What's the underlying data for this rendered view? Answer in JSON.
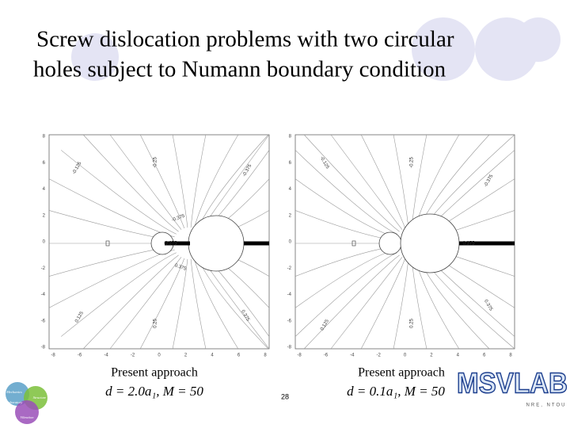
{
  "title": "Screw dislocation problems with two circular holes subject to Numann boundary condition",
  "plots": [
    {
      "caption": "Present approach",
      "formula": "d = 2.0a₁, M = 50",
      "yticks": [
        "8",
        "6",
        "4",
        "2",
        "0",
        "-2",
        "-4",
        "-6",
        "-8"
      ],
      "xticks": [
        "-8",
        "-6",
        "-4",
        "-2",
        "0",
        "2",
        "4",
        "6",
        "8"
      ],
      "contour_labels": [
        "-0.125",
        "-0.25",
        "-0.375",
        "-0.375",
        "-0.375",
        "0.375",
        "0.125",
        "0.25",
        "0.375"
      ]
    },
    {
      "caption": "Present approach",
      "formula": "d = 0.1a₁, M = 50",
      "yticks": [
        "8",
        "6",
        "4",
        "2",
        "0",
        "-2",
        "-4",
        "-6",
        "-8"
      ],
      "xticks": [
        "-8",
        "-6",
        "-4",
        "-2",
        "0",
        "2",
        "4",
        "6",
        "8"
      ],
      "contour_labels": [
        "-0.125",
        "-0.25",
        "-0.375",
        "0.375",
        "0.125",
        "0.25",
        "0.375"
      ]
    }
  ],
  "page_number": "28",
  "logo_left": [
    "Mechanics",
    "Structure",
    "Laboratory",
    "Vibration"
  ],
  "logo_right": {
    "text": "MSVLAB",
    "subtext": "NRE, NTOU"
  }
}
